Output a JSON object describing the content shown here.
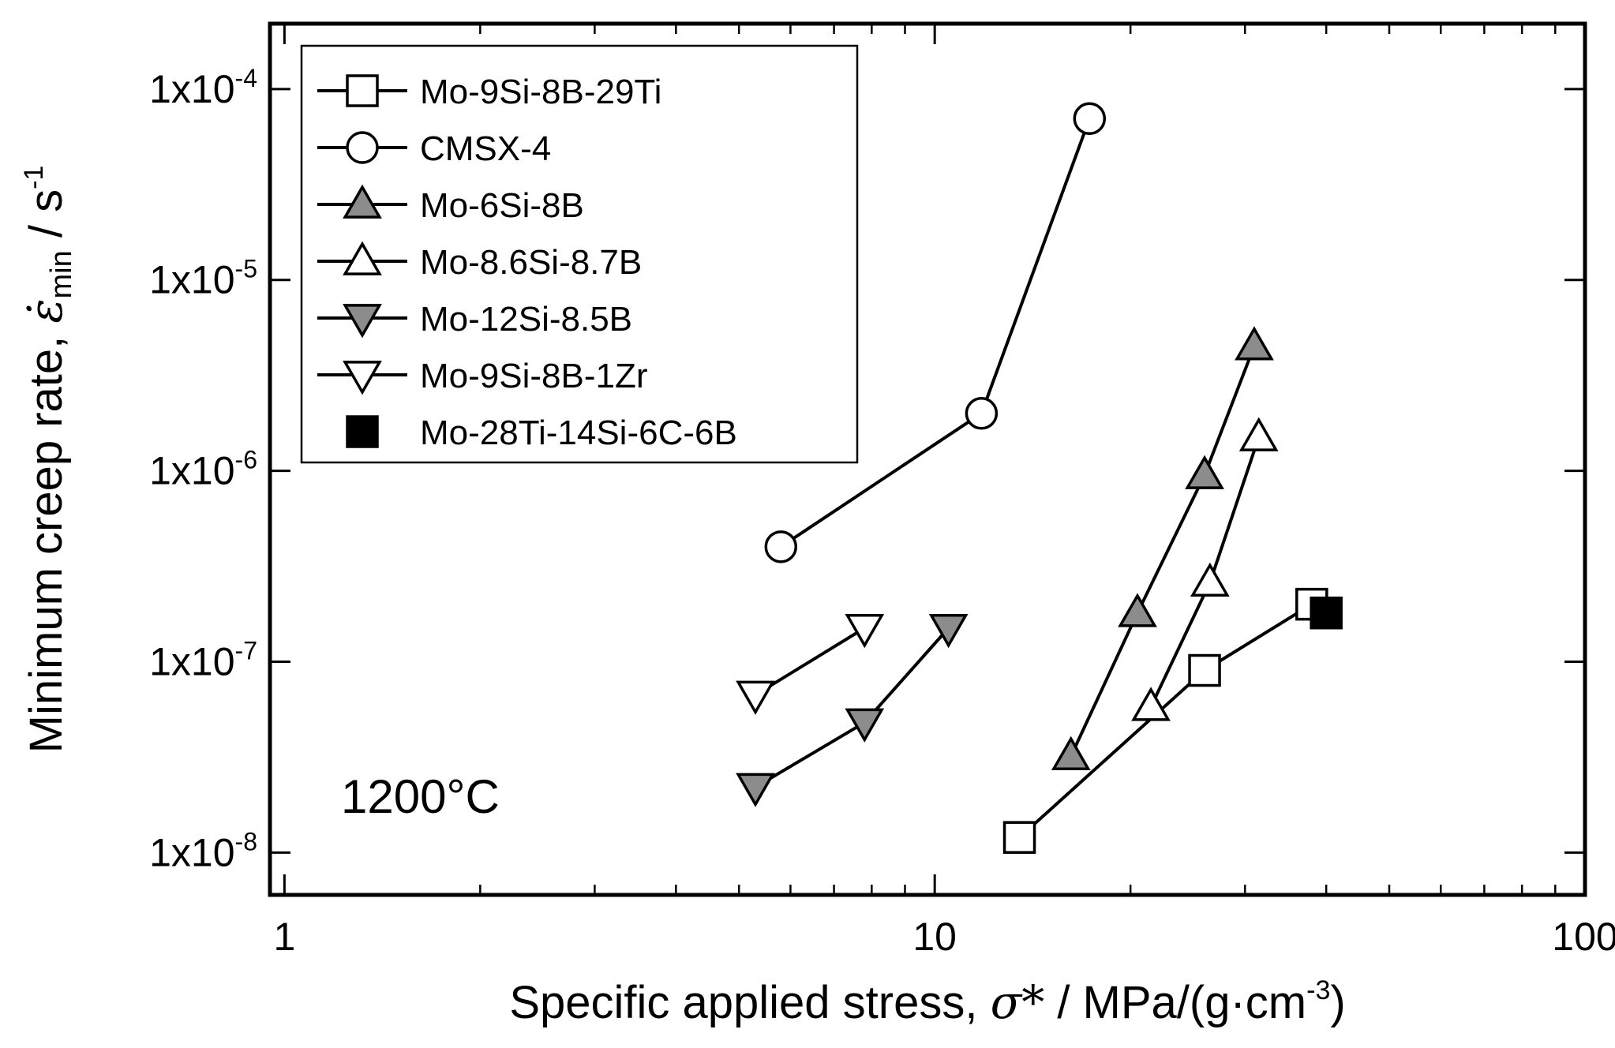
{
  "chart_data": {
    "type": "scatter",
    "title": "",
    "xlabel": {
      "prefix": "Specific applied stress, ",
      "symbol": "σ*",
      "suffix": " / MPa/(g·cm",
      "exponent": "-3",
      "close": ")"
    },
    "ylabel": {
      "prefix": "Minimum creep rate, ",
      "symbol": "ε̇",
      "subscript": "min",
      "suffix": " / s",
      "exponent": "-1"
    },
    "x_scale": "log",
    "y_scale": "log",
    "xlim": [
      0.95,
      100
    ],
    "ylim": [
      0.006,
      220
    ],
    "y_unit_exponent": -6,
    "x_ticks": [
      {
        "value": 1,
        "label": "1"
      },
      {
        "value": 10,
        "label": "10"
      },
      {
        "value": 100,
        "label": "100"
      }
    ],
    "y_ticks": [
      {
        "value": 100,
        "base": "1x10",
        "exp": "-4"
      },
      {
        "value": 10,
        "base": "1x10",
        "exp": "-5"
      },
      {
        "value": 1,
        "base": "1x10",
        "exp": "-6"
      },
      {
        "value": 0.1,
        "base": "1x10",
        "exp": "-7"
      },
      {
        "value": 0.01,
        "base": "1x10",
        "exp": "-8"
      }
    ],
    "grid": false,
    "legend_position": "top-left",
    "annotation": "1200°C",
    "series": [
      {
        "name": "Mo-9Si-8B-29Ti",
        "marker": "square",
        "fill": "#ffffff",
        "line": true,
        "x": [
          13.5,
          26,
          38
        ],
        "y": [
          0.012,
          0.09,
          0.2
        ]
      },
      {
        "name": "CMSX-4",
        "marker": "circle",
        "fill": "#ffffff",
        "line": true,
        "x": [
          5.8,
          11.8,
          17.3
        ],
        "y": [
          0.4,
          2.0,
          70
        ]
      },
      {
        "name": "Mo-6Si-8B",
        "marker": "triangle-up",
        "fill": "#8c8c8c",
        "line": true,
        "x": [
          16.2,
          20.5,
          26,
          31
        ],
        "y": [
          0.032,
          0.18,
          0.95,
          4.5
        ]
      },
      {
        "name": "Mo-8.6Si-8.7B",
        "marker": "triangle-up",
        "fill": "#ffffff",
        "line": true,
        "x": [
          21.5,
          26.5,
          31.5
        ],
        "y": [
          0.058,
          0.26,
          1.5
        ]
      },
      {
        "name": "Mo-12Si-8.5B",
        "marker": "triangle-down",
        "fill": "#8c8c8c",
        "line": true,
        "x": [
          5.3,
          7.8,
          10.5
        ],
        "y": [
          0.022,
          0.048,
          0.15
        ]
      },
      {
        "name": "Mo-9Si-8B-1Zr",
        "marker": "triangle-down",
        "fill": "#ffffff",
        "line": true,
        "x": [
          5.3,
          7.8
        ],
        "y": [
          0.067,
          0.15
        ]
      },
      {
        "name": "Mo-28Ti-14Si-6C-6B",
        "marker": "square",
        "fill": "#000000",
        "line": false,
        "x": [
          40
        ],
        "y": [
          0.18
        ]
      }
    ]
  }
}
